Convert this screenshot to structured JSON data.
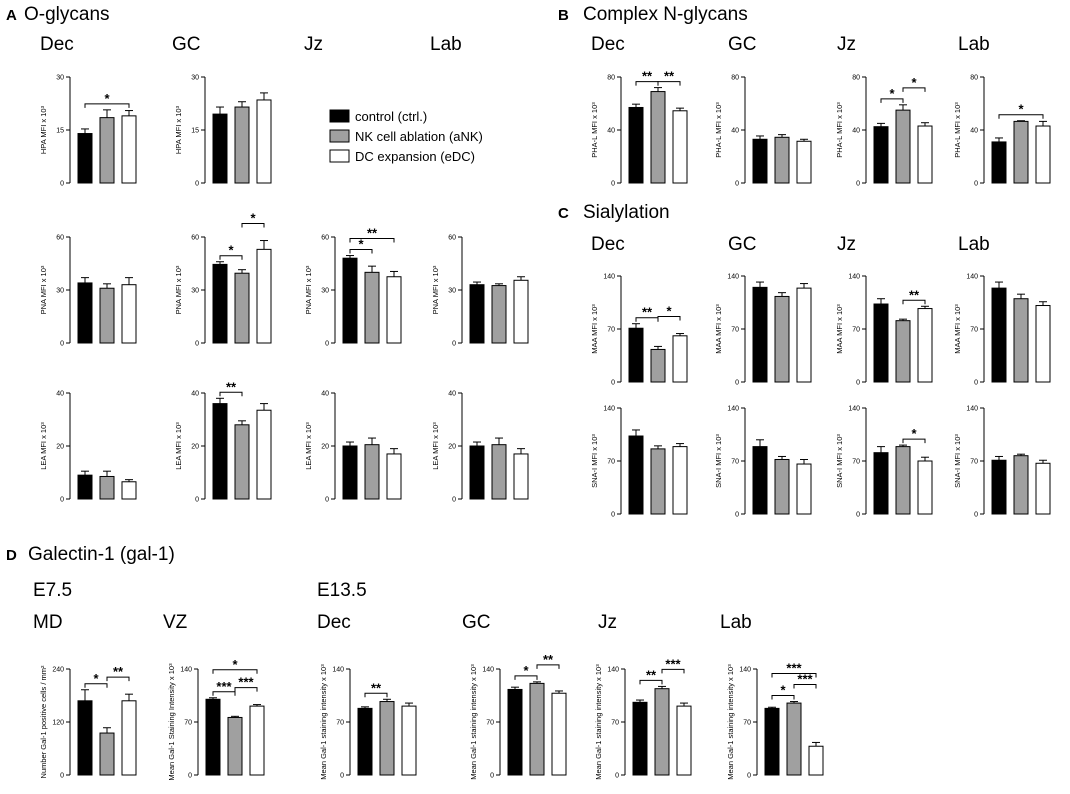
{
  "colors": {
    "ctrl": "#000000",
    "aNK": "#a0a0a0",
    "eDC": "#ffffff",
    "stroke": "#000000"
  },
  "legend": [
    {
      "label": "control (ctrl.)",
      "key": "ctrl"
    },
    {
      "label": "NK cell ablation (aNK)",
      "key": "aNK"
    },
    {
      "label": "DC expansion (eDC)",
      "key": "eDC"
    }
  ],
  "panels": [
    {
      "letter": "A",
      "title": "O-glycans"
    },
    {
      "letter": "B",
      "title": "Complex N-glycans"
    },
    {
      "letter": "C",
      "title": "Sialylation"
    },
    {
      "letter": "D",
      "title": "Galectin-1 (gal-1)"
    }
  ],
  "groups": [
    "E7.5",
    "E13.5"
  ],
  "chart_data": [
    {
      "id": "A-HPA-Dec",
      "type": "bar",
      "title": "Dec",
      "ylabel": "HPA MFI x 10³",
      "ylim": [
        0,
        30
      ],
      "ticks": [
        0,
        15,
        30
      ],
      "categories": [
        "ctrl",
        "aNK",
        "eDC"
      ],
      "values": [
        14,
        18.5,
        19
      ],
      "errors": [
        1.3,
        2.2,
        1.5
      ],
      "sig": [
        {
          "from": 0,
          "to": 2,
          "level": 0,
          "label": "*"
        }
      ]
    },
    {
      "id": "A-HPA-GC",
      "type": "bar",
      "title": "GC",
      "ylabel": "HPA MFI x 10³",
      "ylim": [
        0,
        30
      ],
      "ticks": [
        0,
        15,
        30
      ],
      "categories": [
        "ctrl",
        "aNK",
        "eDC"
      ],
      "values": [
        19.5,
        21.5,
        23.5
      ],
      "errors": [
        2.0,
        1.5,
        2.0
      ],
      "sig": []
    },
    {
      "id": "A-PNA-Dec",
      "type": "bar",
      "title": "",
      "ylabel": "PNA MFI x 10³",
      "ylim": [
        0,
        60
      ],
      "ticks": [
        0,
        30,
        60
      ],
      "categories": [
        "ctrl",
        "aNK",
        "eDC"
      ],
      "values": [
        34,
        31,
        33
      ],
      "errors": [
        3.0,
        2.5,
        4.0
      ],
      "sig": []
    },
    {
      "id": "A-PNA-GC",
      "type": "bar",
      "title": "",
      "ylabel": "PNA MFI x 10³",
      "ylim": [
        0,
        60
      ],
      "ticks": [
        0,
        30,
        60
      ],
      "categories": [
        "ctrl",
        "aNK",
        "eDC"
      ],
      "values": [
        44.5,
        39.5,
        53
      ],
      "errors": [
        1.5,
        2.0,
        5.0
      ],
      "sig": [
        {
          "from": 0,
          "to": 1,
          "level": 0,
          "label": "*"
        },
        {
          "from": 1,
          "to": 2,
          "level": 1,
          "label": "*"
        }
      ]
    },
    {
      "id": "A-PNA-Jz",
      "type": "bar",
      "title": "Jz",
      "ylabel": "PNA MFI x 10³",
      "ylim": [
        0,
        60
      ],
      "ticks": [
        0,
        30,
        60
      ],
      "categories": [
        "ctrl",
        "aNK",
        "eDC"
      ],
      "values": [
        48,
        40,
        37.5
      ],
      "errors": [
        1.5,
        3.5,
        3.0
      ],
      "sig": [
        {
          "from": 0,
          "to": 1,
          "level": 0,
          "label": "*"
        },
        {
          "from": 0,
          "to": 2,
          "level": 1,
          "label": "**"
        }
      ]
    },
    {
      "id": "A-PNA-Lab",
      "type": "bar",
      "title": "Lab",
      "ylabel": "PNA MFI x 10³",
      "ylim": [
        0,
        60
      ],
      "ticks": [
        0,
        30,
        60
      ],
      "categories": [
        "ctrl",
        "aNK",
        "eDC"
      ],
      "values": [
        33,
        32.5,
        35.5
      ],
      "errors": [
        1.5,
        1.0,
        2.0
      ],
      "sig": []
    },
    {
      "id": "A-LEA-Dec",
      "type": "bar",
      "title": "",
      "ylabel": "LEA MFI x 10³",
      "ylim": [
        0,
        40
      ],
      "ticks": [
        0,
        20,
        40
      ],
      "categories": [
        "ctrl",
        "aNK",
        "eDC"
      ],
      "values": [
        9,
        8.5,
        6.5
      ],
      "errors": [
        1.5,
        2.0,
        0.8
      ],
      "sig": []
    },
    {
      "id": "A-LEA-GC",
      "type": "bar",
      "title": "",
      "ylabel": "LEA MFI x 10³",
      "ylim": [
        0,
        40
      ],
      "ticks": [
        0,
        20,
        40
      ],
      "categories": [
        "ctrl",
        "aNK",
        "eDC"
      ],
      "values": [
        36,
        28,
        33.5
      ],
      "errors": [
        2.0,
        1.5,
        2.5
      ],
      "sig": [
        {
          "from": 0,
          "to": 1,
          "level": 0,
          "label": "**"
        }
      ]
    },
    {
      "id": "A-LEA-Jz",
      "type": "bar",
      "title": "",
      "ylabel": "LEA MFI x 10³",
      "ylim": [
        0,
        40
      ],
      "ticks": [
        0,
        20,
        40
      ],
      "categories": [
        "ctrl",
        "aNK",
        "eDC"
      ],
      "values": [
        20,
        20.5,
        17
      ],
      "errors": [
        1.5,
        2.5,
        2.0
      ],
      "sig": []
    },
    {
      "id": "A-LEA-Lab",
      "type": "bar",
      "title": "",
      "ylabel": "LEA MFI x 10³",
      "ylim": [
        0,
        40
      ],
      "ticks": [
        0,
        20,
        40
      ],
      "categories": [
        "ctrl",
        "aNK",
        "eDC"
      ],
      "values": [
        20,
        20.5,
        17
      ],
      "errors": [
        1.5,
        2.5,
        2.0
      ],
      "sig": []
    },
    {
      "id": "B-PHAL-Dec",
      "type": "bar",
      "title": "Dec",
      "ylabel": "PHA-L MFI x 10³",
      "ylim": [
        0,
        80
      ],
      "ticks": [
        0,
        40,
        80
      ],
      "categories": [
        "ctrl",
        "aNK",
        "eDC"
      ],
      "values": [
        57,
        69,
        54.5
      ],
      "errors": [
        2.5,
        3.0,
        2.0
      ],
      "sig": [
        {
          "from": 0,
          "to": 1,
          "level": 0,
          "label": "**"
        },
        {
          "from": 1,
          "to": 2,
          "level": 0,
          "label": "**"
        }
      ]
    },
    {
      "id": "B-PHAL-GC",
      "type": "bar",
      "title": "GC",
      "ylabel": "PHA-L MFI x 10³",
      "ylim": [
        0,
        80
      ],
      "ticks": [
        0,
        40,
        80
      ],
      "categories": [
        "ctrl",
        "aNK",
        "eDC"
      ],
      "values": [
        33,
        34.5,
        31.5
      ],
      "errors": [
        2.5,
        2.0,
        1.5
      ],
      "sig": []
    },
    {
      "id": "B-PHAL-Jz",
      "type": "bar",
      "title": "Jz",
      "ylabel": "PHA-L MFI x 10³",
      "ylim": [
        0,
        80
      ],
      "ticks": [
        0,
        40,
        80
      ],
      "categories": [
        "ctrl",
        "aNK",
        "eDC"
      ],
      "values": [
        42.5,
        55,
        43
      ],
      "errors": [
        2.5,
        4.0,
        2.5
      ],
      "sig": [
        {
          "from": 0,
          "to": 1,
          "level": 0,
          "label": "*"
        },
        {
          "from": 1,
          "to": 2,
          "level": 1,
          "label": "*"
        }
      ]
    },
    {
      "id": "B-PHAL-Lab",
      "type": "bar",
      "title": "Lab",
      "ylabel": "PHA-L MFI x 10³",
      "ylim": [
        0,
        80
      ],
      "ticks": [
        0,
        40,
        80
      ],
      "categories": [
        "ctrl",
        "aNK",
        "eDC"
      ],
      "values": [
        31,
        46.5,
        43
      ],
      "errors": [
        3.0,
        0.5,
        3.5
      ],
      "sig": [
        {
          "from": 0,
          "to": 2,
          "level": 0,
          "label": "*"
        }
      ]
    },
    {
      "id": "C-MAA-Dec",
      "type": "bar",
      "title": "Dec",
      "ylabel": "MAA MFI x 10³",
      "ylim": [
        0,
        140
      ],
      "ticks": [
        0,
        70,
        140
      ],
      "categories": [
        "ctrl",
        "aNK",
        "eDC"
      ],
      "values": [
        71,
        43,
        61
      ],
      "errors": [
        6.0,
        4.0,
        3.0
      ],
      "sig": [
        {
          "from": 0,
          "to": 1,
          "level": 0,
          "label": "**"
        },
        {
          "from": 1,
          "to": 2,
          "level": 1,
          "label": "*"
        }
      ]
    },
    {
      "id": "C-MAA-GC",
      "type": "bar",
      "title": "GC",
      "ylabel": "MAA MFI x 10³",
      "ylim": [
        0,
        140
      ],
      "ticks": [
        0,
        70,
        140
      ],
      "categories": [
        "ctrl",
        "aNK",
        "eDC"
      ],
      "values": [
        125,
        113,
        124
      ],
      "errors": [
        7.0,
        5.0,
        6.0
      ],
      "sig": []
    },
    {
      "id": "C-MAA-Jz",
      "type": "bar",
      "title": "Jz",
      "ylabel": "MAA MFI x 10³",
      "ylim": [
        0,
        140
      ],
      "ticks": [
        0,
        70,
        140
      ],
      "categories": [
        "ctrl",
        "aNK",
        "eDC"
      ],
      "values": [
        103,
        81,
        97
      ],
      "errors": [
        7.0,
        2.0,
        3.0
      ],
      "sig": [
        {
          "from": 1,
          "to": 2,
          "level": 0,
          "label": "**"
        }
      ]
    },
    {
      "id": "C-MAA-Lab",
      "type": "bar",
      "title": "Lab",
      "ylabel": "MAA MFI x 10³",
      "ylim": [
        0,
        140
      ],
      "ticks": [
        0,
        70,
        140
      ],
      "categories": [
        "ctrl",
        "aNK",
        "eDC"
      ],
      "values": [
        124,
        110,
        101
      ],
      "errors": [
        8.0,
        6.0,
        5.0
      ],
      "sig": []
    },
    {
      "id": "C-SNA-Dec",
      "type": "bar",
      "title": "",
      "ylabel": "SNA-I MFI x 10³",
      "ylim": [
        0,
        140
      ],
      "ticks": [
        0,
        70,
        140
      ],
      "categories": [
        "ctrl",
        "aNK",
        "eDC"
      ],
      "values": [
        103,
        86,
        89
      ],
      "errors": [
        8.0,
        4.0,
        4.0
      ],
      "sig": []
    },
    {
      "id": "C-SNA-GC",
      "type": "bar",
      "title": "",
      "ylabel": "SNA-I MFI x 10³",
      "ylim": [
        0,
        140
      ],
      "ticks": [
        0,
        70,
        140
      ],
      "categories": [
        "ctrl",
        "aNK",
        "eDC"
      ],
      "values": [
        89,
        72,
        66
      ],
      "errors": [
        9.0,
        4.0,
        6.0
      ],
      "sig": []
    },
    {
      "id": "C-SNA-Jz",
      "type": "bar",
      "title": "",
      "ylabel": "SNA-I MFI x 10³",
      "ylim": [
        0,
        140
      ],
      "ticks": [
        0,
        70,
        140
      ],
      "categories": [
        "ctrl",
        "aNK",
        "eDC"
      ],
      "values": [
        81,
        89,
        70
      ],
      "errors": [
        8.0,
        2.0,
        5.0
      ],
      "sig": [
        {
          "from": 1,
          "to": 2,
          "level": 0,
          "label": "*"
        }
      ]
    },
    {
      "id": "C-SNA-Lab",
      "type": "bar",
      "title": "",
      "ylabel": "SNA-I MFI x 10³",
      "ylim": [
        0,
        140
      ],
      "ticks": [
        0,
        70,
        140
      ],
      "categories": [
        "ctrl",
        "aNK",
        "eDC"
      ],
      "values": [
        71,
        77,
        67
      ],
      "errors": [
        5.0,
        2.0,
        4.0
      ],
      "sig": []
    },
    {
      "id": "D-MD",
      "type": "bar",
      "title": "MD",
      "ylabel": "Number Gal-1 positive cells / mm²",
      "ylim": [
        0,
        240
      ],
      "ticks": [
        0,
        120,
        240
      ],
      "categories": [
        "ctrl",
        "aNK",
        "eDC"
      ],
      "values": [
        168,
        95,
        168
      ],
      "errors": [
        25.0,
        12.0,
        15.0
      ],
      "sig": [
        {
          "from": 0,
          "to": 1,
          "level": 0,
          "label": "*"
        },
        {
          "from": 1,
          "to": 2,
          "level": 1,
          "label": "**"
        }
      ]
    },
    {
      "id": "D-VZ",
      "type": "bar",
      "title": "VZ",
      "ylabel": "Mean Gal-1 Staining Intensity x 10³",
      "ylim": [
        0,
        140
      ],
      "ticks": [
        0,
        70,
        140
      ],
      "categories": [
        "ctrl",
        "aNK",
        "eDC"
      ],
      "values": [
        100,
        76,
        91
      ],
      "errors": [
        2.0,
        1.5,
        2.0
      ],
      "sig": [
        {
          "from": 0,
          "to": 1,
          "level": 0,
          "label": "***"
        },
        {
          "from": 1,
          "to": 2,
          "level": 1,
          "label": "***"
        },
        {
          "from": 0,
          "to": 2,
          "level": 2,
          "label": "*"
        }
      ]
    },
    {
      "id": "D-Dec",
      "type": "bar",
      "title": "Dec",
      "ylabel": "Mean Gal-1 staining intensity x 10³",
      "ylim": [
        0,
        140
      ],
      "ticks": [
        0,
        70,
        140
      ],
      "categories": [
        "ctrl",
        "aNK",
        "eDC"
      ],
      "values": [
        88,
        97,
        91
      ],
      "errors": [
        2.0,
        3.0,
        4.0
      ],
      "sig": [
        {
          "from": 0,
          "to": 1,
          "level": 0,
          "label": "**"
        }
      ]
    },
    {
      "id": "D-GC",
      "type": "bar",
      "title": "GC",
      "ylabel": "Mean Gal-1 staining intensity x 10³",
      "ylim": [
        0,
        140
      ],
      "ticks": [
        0,
        70,
        140
      ],
      "categories": [
        "ctrl",
        "aNK",
        "eDC"
      ],
      "values": [
        113,
        121,
        108
      ],
      "errors": [
        3.0,
        2.0,
        3.0
      ],
      "sig": [
        {
          "from": 0,
          "to": 1,
          "level": 0,
          "label": "*"
        },
        {
          "from": 1,
          "to": 2,
          "level": 1,
          "label": "**"
        }
      ]
    },
    {
      "id": "D-Jz",
      "type": "bar",
      "title": "Jz",
      "ylabel": "Mean Gal-1 staining intensity x 10³",
      "ylim": [
        0,
        140
      ],
      "ticks": [
        0,
        70,
        140
      ],
      "categories": [
        "ctrl",
        "aNK",
        "eDC"
      ],
      "values": [
        96,
        114,
        91
      ],
      "errors": [
        3.0,
        3.0,
        4.0
      ],
      "sig": [
        {
          "from": 0,
          "to": 1,
          "level": 0,
          "label": "**"
        },
        {
          "from": 1,
          "to": 2,
          "level": 1,
          "label": "***"
        }
      ]
    },
    {
      "id": "D-Lab",
      "type": "bar",
      "title": "Lab",
      "ylabel": "Mean Gal-1 staining intensity x 10³",
      "ylim": [
        0,
        140
      ],
      "ticks": [
        0,
        70,
        140
      ],
      "categories": [
        "ctrl",
        "aNK",
        "eDC"
      ],
      "values": [
        88,
        95,
        38
      ],
      "errors": [
        1.5,
        2.0,
        5.0
      ],
      "sig": [
        {
          "from": 0,
          "to": 1,
          "level": 0,
          "label": "*"
        },
        {
          "from": 1,
          "to": 2,
          "level": 1,
          "label": "***"
        },
        {
          "from": 0,
          "to": 2,
          "level": 2,
          "label": "***"
        }
      ]
    }
  ]
}
